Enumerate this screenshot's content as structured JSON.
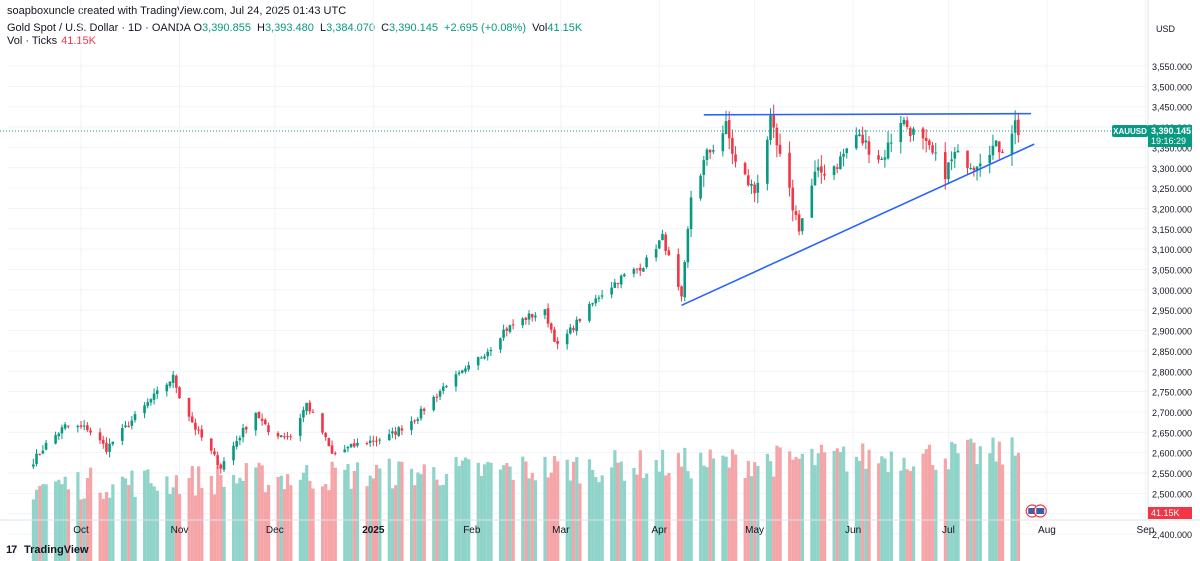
{
  "attribution": "soapboxuncle created with TradingView.com, Jul 24, 2025 01:43 UTC",
  "legend": {
    "symbol": "Gold Spot / U.S. Dollar · 1D · OANDA",
    "o_label": "O",
    "o_value": "3,390.855",
    "h_label": "H",
    "h_value": "3,393.480",
    "l_label": "L",
    "l_value": "3,384.070",
    "c_label": "C",
    "c_value": "3,390.145",
    "change": "+2.695 (+0.08%)",
    "vol_label": "Vol",
    "vol_value": "41.15K",
    "vol_row_label": "Vol · Ticks",
    "vol_row_value": "41.15K"
  },
  "price_axis": {
    "currency": "USD",
    "ticks": [
      "3,550.000",
      "3,500.000",
      "3,450.000",
      "3,400.000",
      "3,350.000",
      "3,300.000",
      "3,250.000",
      "3,200.000",
      "3,150.000",
      "3,100.000",
      "3,050.000",
      "3,000.000",
      "2,950.000",
      "2,900.000",
      "2,850.000",
      "2,800.000",
      "2,750.000",
      "2,700.000",
      "2,650.000",
      "2,600.000",
      "2,550.000",
      "2,500.000",
      "2,450.000",
      "2,400.000"
    ],
    "symbol_tag": "XAUUSD",
    "last_price": "3,390.145",
    "countdown": "19:16:29",
    "volume_tag": "41.15K"
  },
  "time_axis": {
    "labels": [
      {
        "text": "Oct",
        "date": "2024-10-01",
        "bold": false
      },
      {
        "text": "Nov",
        "date": "2024-11-01",
        "bold": false
      },
      {
        "text": "Dec",
        "date": "2024-12-01",
        "bold": false
      },
      {
        "text": "2025",
        "date": "2025-01-01",
        "bold": true
      },
      {
        "text": "Feb",
        "date": "2025-02-01",
        "bold": false
      },
      {
        "text": "Mar",
        "date": "2025-03-01",
        "bold": false
      },
      {
        "text": "Apr",
        "date": "2025-04-01",
        "bold": false
      },
      {
        "text": "May",
        "date": "2025-05-01",
        "bold": false
      },
      {
        "text": "Jun",
        "date": "2025-06-01",
        "bold": false
      },
      {
        "text": "Jul",
        "date": "2025-07-01",
        "bold": false
      },
      {
        "text": "Aug",
        "date": "2025-08-01",
        "bold": false
      },
      {
        "text": "Sep",
        "date": "2025-09-01",
        "bold": false
      }
    ]
  },
  "footer": {
    "logo_text": "TradingView"
  },
  "colors": {
    "up": "#089981",
    "down": "#f23645",
    "vol_up": "#8fd3c9",
    "vol_down": "#f5a5a8",
    "trendline": "#2962ff",
    "last_price_line": "#089981",
    "grid": "#f0f3fa",
    "axis_text": "#131722"
  },
  "chart_data": {
    "type": "candlestick",
    "series": [
      {
        "name": "Gold Spot / U.S. Dollar"
      }
    ],
    "ylim": [
      2400,
      3560
    ],
    "xlim": [
      "2024-09-15",
      "2025-09-10"
    ],
    "grid": true,
    "price_path": [
      [
        "2024-09-16",
        2580
      ],
      [
        "2024-09-20",
        2620
      ],
      [
        "2024-09-26",
        2665
      ],
      [
        "2024-10-03",
        2660
      ],
      [
        "2024-10-09",
        2610
      ],
      [
        "2024-10-16",
        2670
      ],
      [
        "2024-10-23",
        2730
      ],
      [
        "2024-10-30",
        2785
      ],
      [
        "2024-11-01",
        2740
      ],
      [
        "2024-11-06",
        2660
      ],
      [
        "2024-11-14",
        2565
      ],
      [
        "2024-11-19",
        2630
      ],
      [
        "2024-11-25",
        2700
      ],
      [
        "2024-11-29",
        2650
      ],
      [
        "2024-12-06",
        2640
      ],
      [
        "2024-12-11",
        2720
      ],
      [
        "2024-12-16",
        2650
      ],
      [
        "2024-12-19",
        2595
      ],
      [
        "2024-12-27",
        2620
      ],
      [
        "2025-01-06",
        2640
      ],
      [
        "2025-01-15",
        2690
      ],
      [
        "2025-01-24",
        2770
      ],
      [
        "2025-01-30",
        2800
      ],
      [
        "2025-02-07",
        2860
      ],
      [
        "2025-02-11",
        2900
      ],
      [
        "2025-02-19",
        2935
      ],
      [
        "2025-02-24",
        2945
      ],
      [
        "2025-02-28",
        2860
      ],
      [
        "2025-03-05",
        2910
      ],
      [
        "2025-03-13",
        2985
      ],
      [
        "2025-03-20",
        3030
      ],
      [
        "2025-03-27",
        3060
      ],
      [
        "2025-04-02",
        3130
      ],
      [
        "2025-04-08",
        2975
      ],
      [
        "2025-04-11",
        3230
      ],
      [
        "2025-04-16",
        3330
      ],
      [
        "2025-04-22",
        3400
      ],
      [
        "2025-04-25",
        3310
      ],
      [
        "2025-05-01",
        3240
      ],
      [
        "2025-05-06",
        3410
      ],
      [
        "2025-05-09",
        3320
      ],
      [
        "2025-05-15",
        3150
      ],
      [
        "2025-05-20",
        3280
      ],
      [
        "2025-05-27",
        3310
      ],
      [
        "2025-06-02",
        3380
      ],
      [
        "2025-06-10",
        3320
      ],
      [
        "2025-06-16",
        3420
      ],
      [
        "2025-06-23",
        3360
      ],
      [
        "2025-06-30",
        3290
      ],
      [
        "2025-07-03",
        3330
      ],
      [
        "2025-07-09",
        3310
      ],
      [
        "2025-07-14",
        3350
      ],
      [
        "2025-07-18",
        3350
      ],
      [
        "2025-07-22",
        3410
      ],
      [
        "2025-07-23",
        3390
      ]
    ],
    "volume_range": [
      2400,
      2700
    ],
    "annotations": [
      {
        "type": "trendline",
        "name": "resistance",
        "points": [
          [
            "2025-04-15",
            3430
          ],
          [
            "2025-07-27",
            3433
          ]
        ]
      },
      {
        "type": "trendline",
        "name": "support",
        "points": [
          [
            "2025-04-08",
            2962
          ],
          [
            "2025-07-28",
            3358
          ]
        ]
      }
    ]
  }
}
